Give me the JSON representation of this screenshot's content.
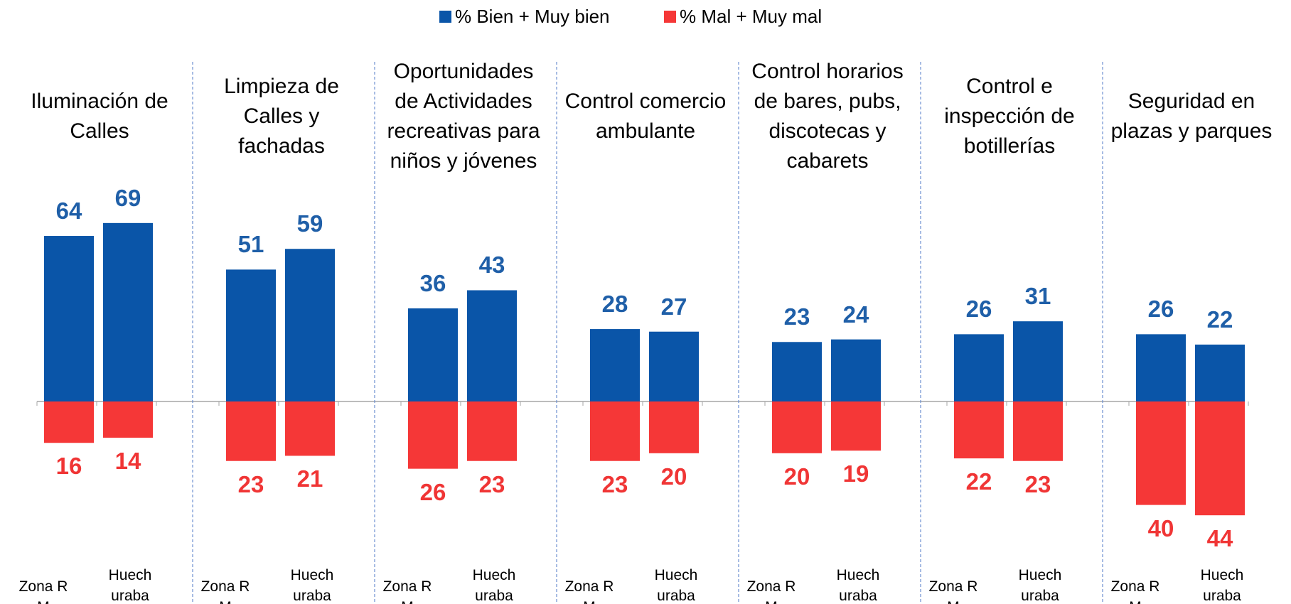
{
  "chart_data": {
    "type": "bar",
    "categories": [
      "Iluminación de Calles",
      "Limpieza de Calles y fachadas",
      "Oportunidades de Actividades recreativas para niños y jóvenes",
      "Control comercio ambulante",
      "Control horarios de bares, pubs, discotecas y cabarets",
      "Control e inspección de botillerías",
      "Seguridad en plazas y parques"
    ],
    "subcategories": [
      "Zona RM",
      "Huechuraba"
    ],
    "series": [
      {
        "name": "% Bien + Muy bien",
        "color": "#0a55a8",
        "label_color": "#1f5fa8",
        "values": [
          [
            64,
            69
          ],
          [
            51,
            59
          ],
          [
            36,
            43
          ],
          [
            28,
            27
          ],
          [
            23,
            24
          ],
          [
            26,
            31
          ],
          [
            26,
            22
          ]
        ]
      },
      {
        "name": "% Mal + Muy mal",
        "color": "#f53737",
        "label_color": "#f03535",
        "values": [
          [
            -16,
            -14
          ],
          [
            -23,
            -21
          ],
          [
            -26,
            -23
          ],
          [
            -23,
            -20
          ],
          [
            -20,
            -19
          ],
          [
            -22,
            -23
          ],
          [
            -40,
            -44
          ]
        ],
        "value_labels": [
          [
            "16",
            "14"
          ],
          [
            "23",
            "21"
          ],
          [
            "26",
            "23"
          ],
          [
            "23",
            "20"
          ],
          [
            "20",
            "19"
          ],
          [
            "22",
            "23"
          ],
          [
            "40",
            "44"
          ]
        ]
      }
    ]
  }
}
